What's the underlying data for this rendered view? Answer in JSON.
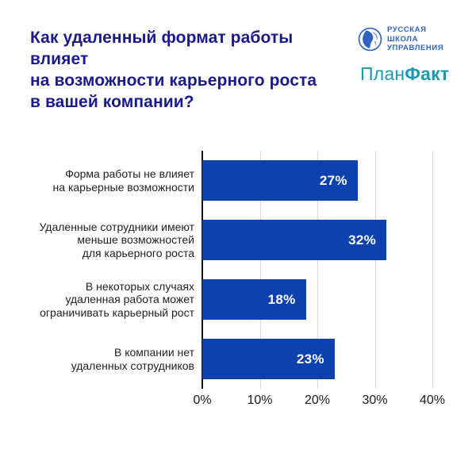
{
  "header": {
    "title_lines": [
      "Как удаленный формат работы влияет",
      "на возможности карьерного роста",
      "в вашей компании?"
    ]
  },
  "logos": {
    "rsu": {
      "line1": "РУССКАЯ",
      "line2": "ШКОЛА",
      "line3": "УПРАВЛЕНИЯ"
    },
    "planfact": {
      "part1": "План",
      "part2": "Факт"
    }
  },
  "colors": {
    "title": "#1a1a8c",
    "bar": "#0c41ae",
    "rsu_blue": "#2f63c1",
    "planfact_teal": "#1b9aaf",
    "gridline": "#d9d9d9",
    "axis_line": "#111111",
    "value_label": "#ffffff",
    "category_label": "#1f1f1f"
  },
  "chart_data": {
    "type": "bar",
    "orientation": "horizontal",
    "title": "Как удаленный формат работы влияет на возможности карьерного роста в вашей компании?",
    "categories": [
      "Форма работы не влияет на карьерные возможности",
      "Удаленные сотрудники имеют меньше возможностей для карьерного роста",
      "В некоторых случаях удаленная работа может ограничивать карьерный рост",
      "В компании нет удаленных сотрудников"
    ],
    "categories_lines": [
      [
        "Форма работы не влияет",
        "на карьерные возможности"
      ],
      [
        "Удаленные сотрудники имеют",
        "меньше возможностей",
        "для карьерного роста"
      ],
      [
        "В некоторых случаях",
        "удаленная работа может",
        "ограничивать карьерный рост"
      ],
      [
        "В компании нет",
        "удаленных сотрудников"
      ]
    ],
    "values": [
      27,
      32,
      18,
      23
    ],
    "value_labels": [
      "27%",
      "32%",
      "18%",
      "23%"
    ],
    "xlim": [
      0,
      40
    ],
    "x_ticks": [
      "0%",
      "10%",
      "20%",
      "30%",
      "40%"
    ],
    "grid": true,
    "legend": false,
    "xlabel": "",
    "ylabel": ""
  }
}
